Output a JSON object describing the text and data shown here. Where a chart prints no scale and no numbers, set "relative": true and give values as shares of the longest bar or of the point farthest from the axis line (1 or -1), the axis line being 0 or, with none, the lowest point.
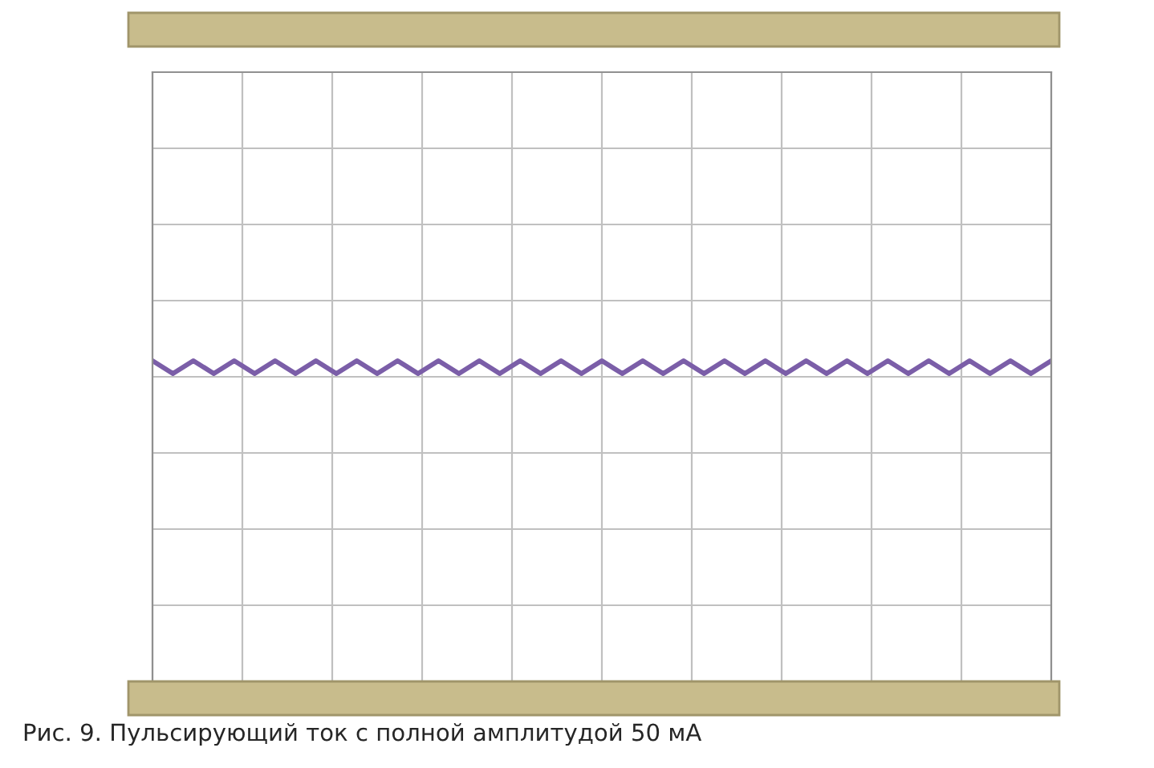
{
  "chart_data": {
    "type": "line",
    "relative": true,
    "title": "Рис. 9. Пульсирующий ток с полной амплитудой 50 мА",
    "categories": [
      null,
      null,
      null,
      null,
      null,
      null,
      null,
      null,
      null,
      null,
      null,
      null,
      null,
      null,
      null,
      null,
      null,
      null,
      null,
      null,
      null,
      null,
      null,
      null,
      null,
      null,
      null,
      null,
      null,
      null,
      null,
      null,
      null,
      null,
      null,
      null,
      null,
      null,
      null,
      null,
      null,
      null,
      null,
      null,
      null
    ],
    "series": [
      {
        "color": "#7b5ea8",
        "values": [
          1,
          0.96,
          1,
          0.96,
          1,
          0.96,
          1,
          0.96,
          1,
          0.96,
          1,
          0.96,
          1,
          0.96,
          1,
          0.96,
          1,
          0.96,
          1,
          0.96,
          1,
          0.96,
          1,
          0.96,
          1,
          0.96,
          1,
          0.96,
          1,
          0.96,
          1,
          0.96,
          1,
          0.96,
          1,
          0.96,
          1,
          0.96,
          1,
          0.96,
          1,
          0.96,
          1,
          0.96,
          1
        ]
      }
    ],
    "grid": true,
    "tick_labels": false
  }
}
